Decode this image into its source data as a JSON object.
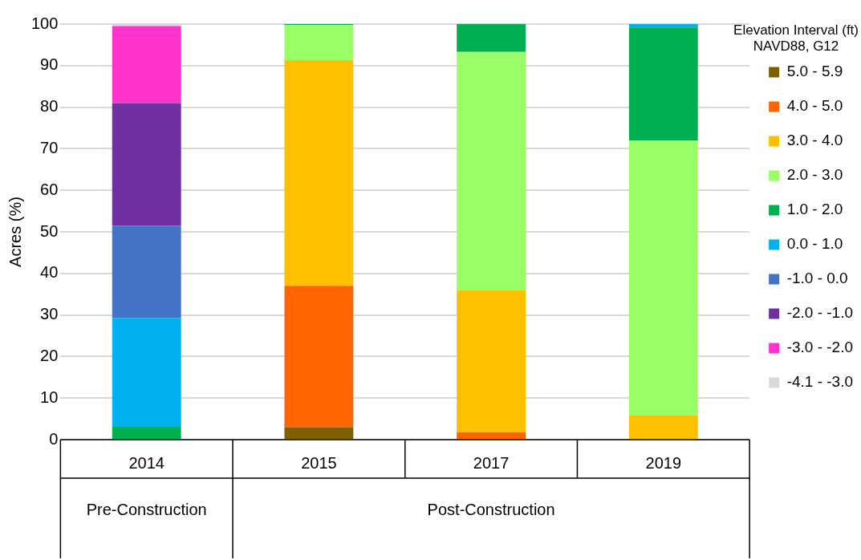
{
  "chart_data": {
    "type": "bar",
    "stacked": true,
    "ylabel": "Acres (%)",
    "legend_title": "Elevation Interval (ft)\nNAVD88, G12",
    "legend": "right",
    "grid": "y",
    "categories": [
      "2014",
      "2015",
      "2017",
      "2019"
    ],
    "annotations": [
      "Pre-Construction",
      "Post-Construction"
    ],
    "ylim": [
      0,
      100
    ],
    "yticks": [
      0,
      10,
      20,
      30,
      40,
      50,
      60,
      70,
      80,
      90,
      100
    ],
    "series": [
      {
        "name": "5.0 - 5.9",
        "color": "#7f6000",
        "values": [
          0,
          3,
          0,
          0
        ]
      },
      {
        "name": "4.0 - 5.0",
        "color": "#ff6600",
        "values": [
          0,
          34,
          1.8,
          0
        ]
      },
      {
        "name": "3.0 - 4.0",
        "color": "#ffc000",
        "values": [
          0,
          54.3,
          34.2,
          5.8
        ]
      },
      {
        "name": "2.0 - 3.0",
        "color": "#99ff66",
        "values": [
          0,
          8.5,
          57.3,
          66.2
        ]
      },
      {
        "name": "1.0 - 2.0",
        "color": "#00b050",
        "values": [
          3.1,
          0.2,
          6.7,
          27.2
        ]
      },
      {
        "name": "0.0 - 1.0",
        "color": "#00b0f0",
        "values": [
          26.2,
          0,
          0,
          0.8
        ]
      },
      {
        "name": "-1.0 - 0.0",
        "color": "#4472c4",
        "values": [
          22.2,
          0,
          0,
          0
        ]
      },
      {
        "name": "-2.0 - -1.0",
        "color": "#7030a0",
        "values": [
          29.5,
          0,
          0,
          0
        ]
      },
      {
        "name": "-3.0 - -2.0",
        "color": "#ff33cc",
        "values": [
          18.5,
          0,
          0,
          0
        ]
      },
      {
        "name": "-4.1 - -3.0",
        "color": "#d9d9d9",
        "values": [
          0.5,
          0,
          0,
          0
        ]
      }
    ]
  }
}
